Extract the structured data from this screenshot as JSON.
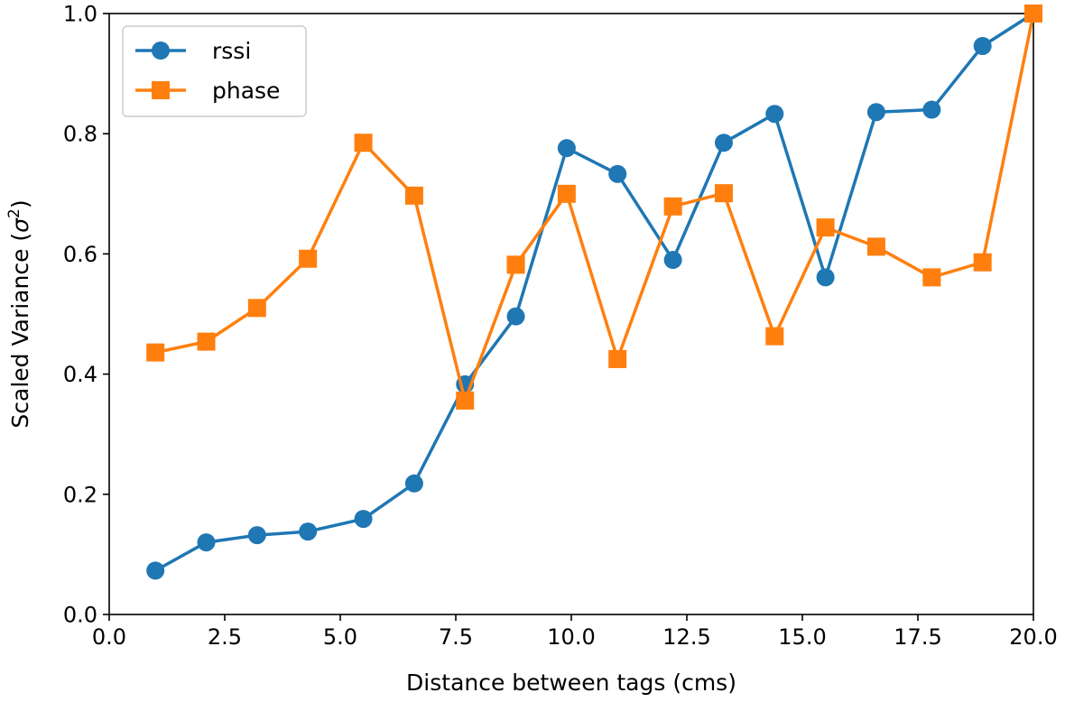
{
  "chart_data": {
    "type": "line",
    "xlabel": "Distance between tags (cms)",
    "ylabel": "Scaled Variance (",
    "ylabel_symbol": "σ",
    "ylabel_sup": "2",
    "ylabel_end": ")",
    "xlim": [
      0,
      20
    ],
    "ylim": [
      0,
      1
    ],
    "x_ticks": [
      0.0,
      2.5,
      5.0,
      7.5,
      10.0,
      12.5,
      15.0,
      17.5,
      20.0
    ],
    "x_tick_labels": [
      "0.0",
      "2.5",
      "5.0",
      "7.5",
      "10.0",
      "12.5",
      "15.0",
      "17.5",
      "20.0"
    ],
    "y_ticks": [
      0.0,
      0.2,
      0.4,
      0.6,
      0.8,
      1.0
    ],
    "y_tick_labels": [
      "0.0",
      "0.2",
      "0.4",
      "0.6",
      "0.8",
      "1.0"
    ],
    "grid": false,
    "legend_position": "upper-left",
    "x": [
      1.0,
      2.1,
      3.2,
      4.3,
      5.5,
      6.6,
      7.7,
      8.8,
      9.9,
      11.0,
      12.2,
      13.3,
      14.4,
      15.5,
      16.6,
      17.8,
      18.9,
      20.0
    ],
    "series": [
      {
        "name": "rssi",
        "color": "#1f77b4",
        "marker": "circle",
        "values": [
          0.073,
          0.12,
          0.132,
          0.138,
          0.159,
          0.218,
          0.383,
          0.496,
          0.776,
          0.733,
          0.59,
          0.785,
          0.833,
          0.561,
          0.836,
          0.84,
          0.946,
          1.0
        ]
      },
      {
        "name": "phase",
        "color": "#ff7f0e",
        "marker": "square",
        "values": [
          0.436,
          0.454,
          0.51,
          0.592,
          0.785,
          0.697,
          0.356,
          0.582,
          0.7,
          0.425,
          0.679,
          0.701,
          0.463,
          0.644,
          0.612,
          0.561,
          0.586,
          1.0
        ]
      }
    ]
  }
}
